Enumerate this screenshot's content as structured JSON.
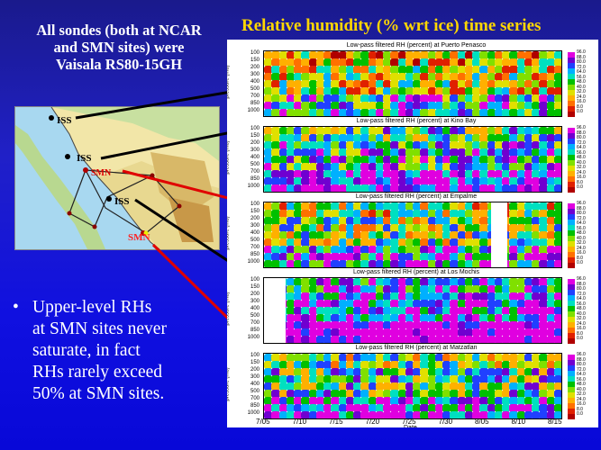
{
  "intro_lines": [
    "All sondes (both at NCAR",
    "and SMN sites) were",
    "Vaisala RS80-15GH"
  ],
  "main_title": "Relative humidity (% wrt ice) time series",
  "map": {
    "labels": [
      {
        "text": "ISS",
        "color": "#000000"
      },
      {
        "text": "ISS",
        "color": "#000000"
      },
      {
        "text": "SMN",
        "color": "#dd0000"
      },
      {
        "text": "ISS",
        "color": "#000000"
      },
      {
        "text": "SMN",
        "color": "#dd0000"
      }
    ]
  },
  "bullet": {
    "symbol": "•",
    "lines": [
      "Upper-level RHs",
      "at SMN sites never",
      "saturate, in fact",
      "RHs  rarely exceed",
      "50% at SMN sites."
    ]
  },
  "panels": [
    {
      "title": "Low-pass filtered RH (percent) at Puerto Penasco"
    },
    {
      "title": "Low-pass filtered RH (percent) at Kino Bay"
    },
    {
      "title": "Low-pass filtered RH (percent) at Empalme"
    },
    {
      "title": "Low-pass filtered RH (percent) at Los Mochis"
    },
    {
      "title": "Low-pass filtered RH (percent) at Matzatlan"
    }
  ],
  "y_axis_label": "pressure (mb)",
  "y_ticks": [
    "100",
    "150",
    "200",
    "300",
    "400",
    "500",
    "700",
    "850",
    "1000"
  ],
  "colorbar": {
    "labels": [
      "96.0",
      "88.0",
      "80.0",
      "72.0",
      "64.0",
      "56.0",
      "48.0",
      "40.0",
      "32.0",
      "24.0",
      "16.0",
      "8.0",
      "0.0"
    ],
    "colors": [
      "#e000e0",
      "#7000d0",
      "#2040ff",
      "#00b0ff",
      "#00e0c0",
      "#00c000",
      "#80e000",
      "#e0e000",
      "#ffb000",
      "#ff7000",
      "#e02000",
      "#b00000"
    ]
  },
  "x_ticks": [
    "7/05",
    "7/10",
    "7/15",
    "7/20",
    "7/25",
    "7/30",
    "8/05",
    "8/10",
    "8/15"
  ],
  "x_axis_label": "Date"
}
